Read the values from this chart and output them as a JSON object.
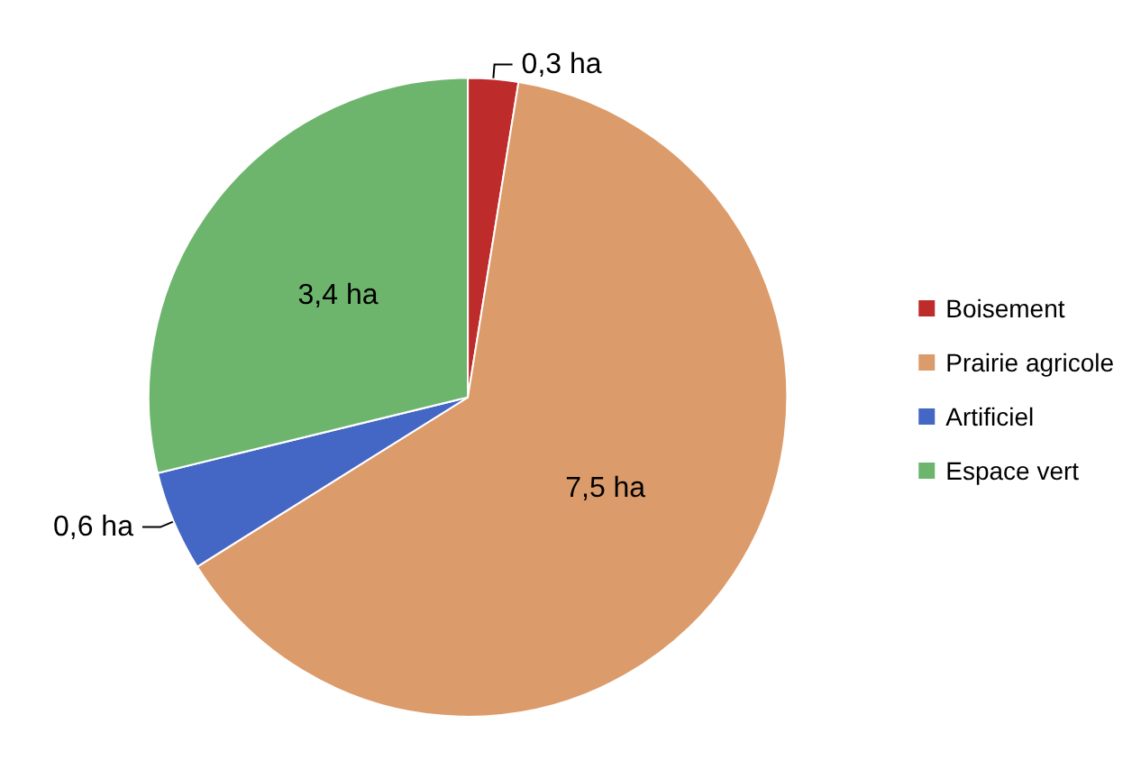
{
  "chart_data": {
    "type": "pie",
    "categories": [
      "Boisement",
      "Prairie agricole",
      "Artificiel",
      "Espace vert"
    ],
    "values": [
      0.3,
      7.5,
      0.6,
      3.4
    ],
    "colors": [
      "#be2b2b",
      "#dc9b6a",
      "#4466c4",
      "#6db56d"
    ],
    "value_labels": [
      "0,3 ha",
      "7,5 ha",
      "0,6 ha",
      "3,4 ha"
    ],
    "legend": "right"
  }
}
